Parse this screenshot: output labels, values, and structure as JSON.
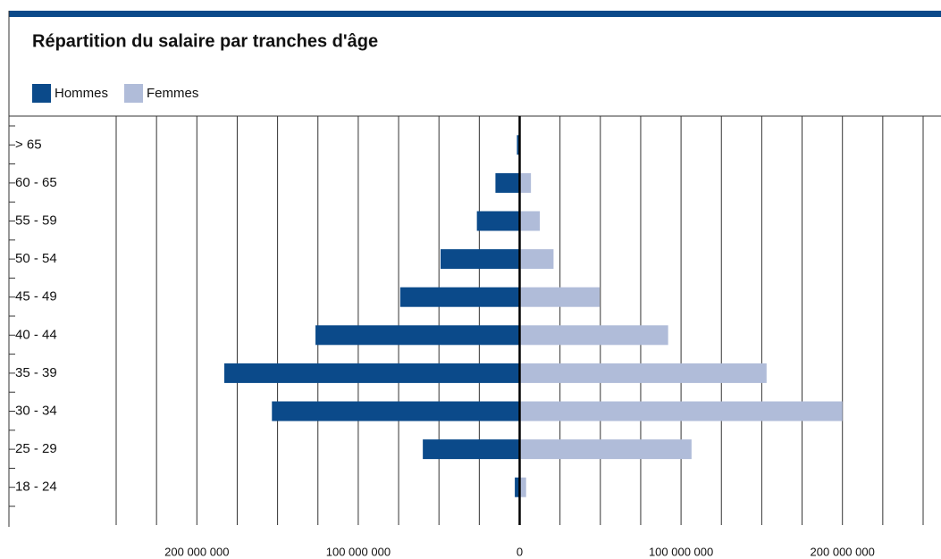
{
  "chart_data": {
    "type": "bar",
    "orientation": "horizontal",
    "title": "Répartition du salaire par tranches d'âge",
    "categories": [
      "> 65",
      "60 - 65",
      "55 - 59",
      "50 - 54",
      "45 - 49",
      "40 - 44",
      "35 - 39",
      "30 - 34",
      "25 - 29",
      "18 - 24"
    ],
    "series": [
      {
        "name": "Hommes",
        "color": "#0b4a8a",
        "values": [
          -1700000,
          -15000000,
          -26500000,
          -49000000,
          -74000000,
          -126500000,
          -183000000,
          -153500000,
          -60000000,
          -3000000
        ]
      },
      {
        "name": "Femmes",
        "color": "#b0bcd9",
        "values": [
          0,
          7000000,
          12500000,
          21000000,
          49500000,
          92000000,
          153000000,
          200000000,
          106500000,
          4000000
        ]
      }
    ],
    "xlim": [
      -250000000,
      250000000
    ],
    "xticks": [
      {
        "value": -200000000,
        "label": "200 000 000"
      },
      {
        "value": -100000000,
        "label": "100 000 000"
      },
      0,
      {
        "value": 100000000,
        "label": "100 000 000"
      },
      {
        "value": 200000000,
        "label": "200 000 000"
      }
    ],
    "xgrid": [
      -250000000,
      -225000000,
      -200000000,
      -175000000,
      -150000000,
      -125000000,
      -100000000,
      -75000000,
      -50000000,
      -25000000,
      25000000,
      50000000,
      75000000,
      100000000,
      125000000,
      150000000,
      175000000,
      200000000,
      225000000,
      250000000
    ],
    "grid": true,
    "legend": "top-left"
  }
}
